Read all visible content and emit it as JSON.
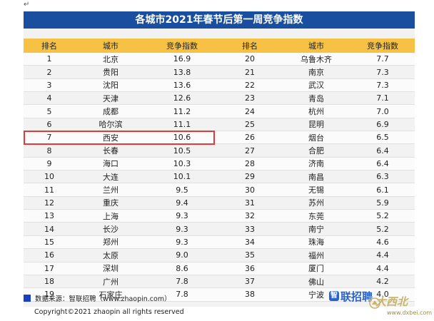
{
  "return_mark": "↵",
  "title": "各城市2021年春节后第一周竞争指数",
  "headers": [
    "排名",
    "城市",
    "竞争指数",
    "排名",
    "城市",
    "竞争指数"
  ],
  "rows": [
    [
      "1",
      "北京",
      "16.9",
      "20",
      "乌鲁木齐",
      "7.7"
    ],
    [
      "2",
      "贵阳",
      "13.8",
      "21",
      "南京",
      "7.3"
    ],
    [
      "3",
      "沈阳",
      "13.6",
      "22",
      "武汉",
      "7.3"
    ],
    [
      "4",
      "天津",
      "12.6",
      "23",
      "青岛",
      "7.1"
    ],
    [
      "5",
      "成都",
      "11.2",
      "24",
      "杭州",
      "7.0"
    ],
    [
      "6",
      "哈尔滨",
      "11.1",
      "25",
      "昆明",
      "6.9"
    ],
    [
      "7",
      "西安",
      "10.6",
      "26",
      "烟台",
      "6.5"
    ],
    [
      "8",
      "长春",
      "10.5",
      "27",
      "合肥",
      "6.4"
    ],
    [
      "9",
      "海口",
      "10.3",
      "28",
      "济南",
      "6.4"
    ],
    [
      "10",
      "大连",
      "10.1",
      "29",
      "南昌",
      "6.3"
    ],
    [
      "11",
      "兰州",
      "9.5",
      "30",
      "无锡",
      "6.1"
    ],
    [
      "12",
      "重庆",
      "9.4",
      "31",
      "苏州",
      "5.9"
    ],
    [
      "13",
      "上海",
      "9.3",
      "32",
      "东莞",
      "5.2"
    ],
    [
      "14",
      "长沙",
      "9.3",
      "33",
      "南宁",
      "5.2"
    ],
    [
      "15",
      "郑州",
      "9.3",
      "34",
      "珠海",
      "4.6"
    ],
    [
      "16",
      "太原",
      "9.0",
      "35",
      "福州",
      "4.4"
    ],
    [
      "17",
      "深圳",
      "8.6",
      "36",
      "厦门",
      "4.4"
    ],
    [
      "18",
      "广州",
      "7.8",
      "37",
      "佛山",
      "4.2"
    ],
    [
      "19",
      "石家庄",
      "7.8",
      "38",
      "宁波",
      "4.0"
    ]
  ],
  "highlighted_row_index": 6,
  "source": "数据来源：智联招聘（www.zhaopin.com）",
  "logo_mark": "智",
  "logo_text": "联招聘",
  "watermark": {
    "glyphs": "大西北",
    "url": "www.dxbei.com"
  },
  "copyright": "Copyright©2021 zhaopin all rights reserved",
  "colors": {
    "title_bg": "#1a4fa0",
    "header_bg": "#f7c244",
    "highlight_border": "#e23a3a",
    "source_square": "#1a3fc0",
    "logo": "#2b63c9"
  }
}
